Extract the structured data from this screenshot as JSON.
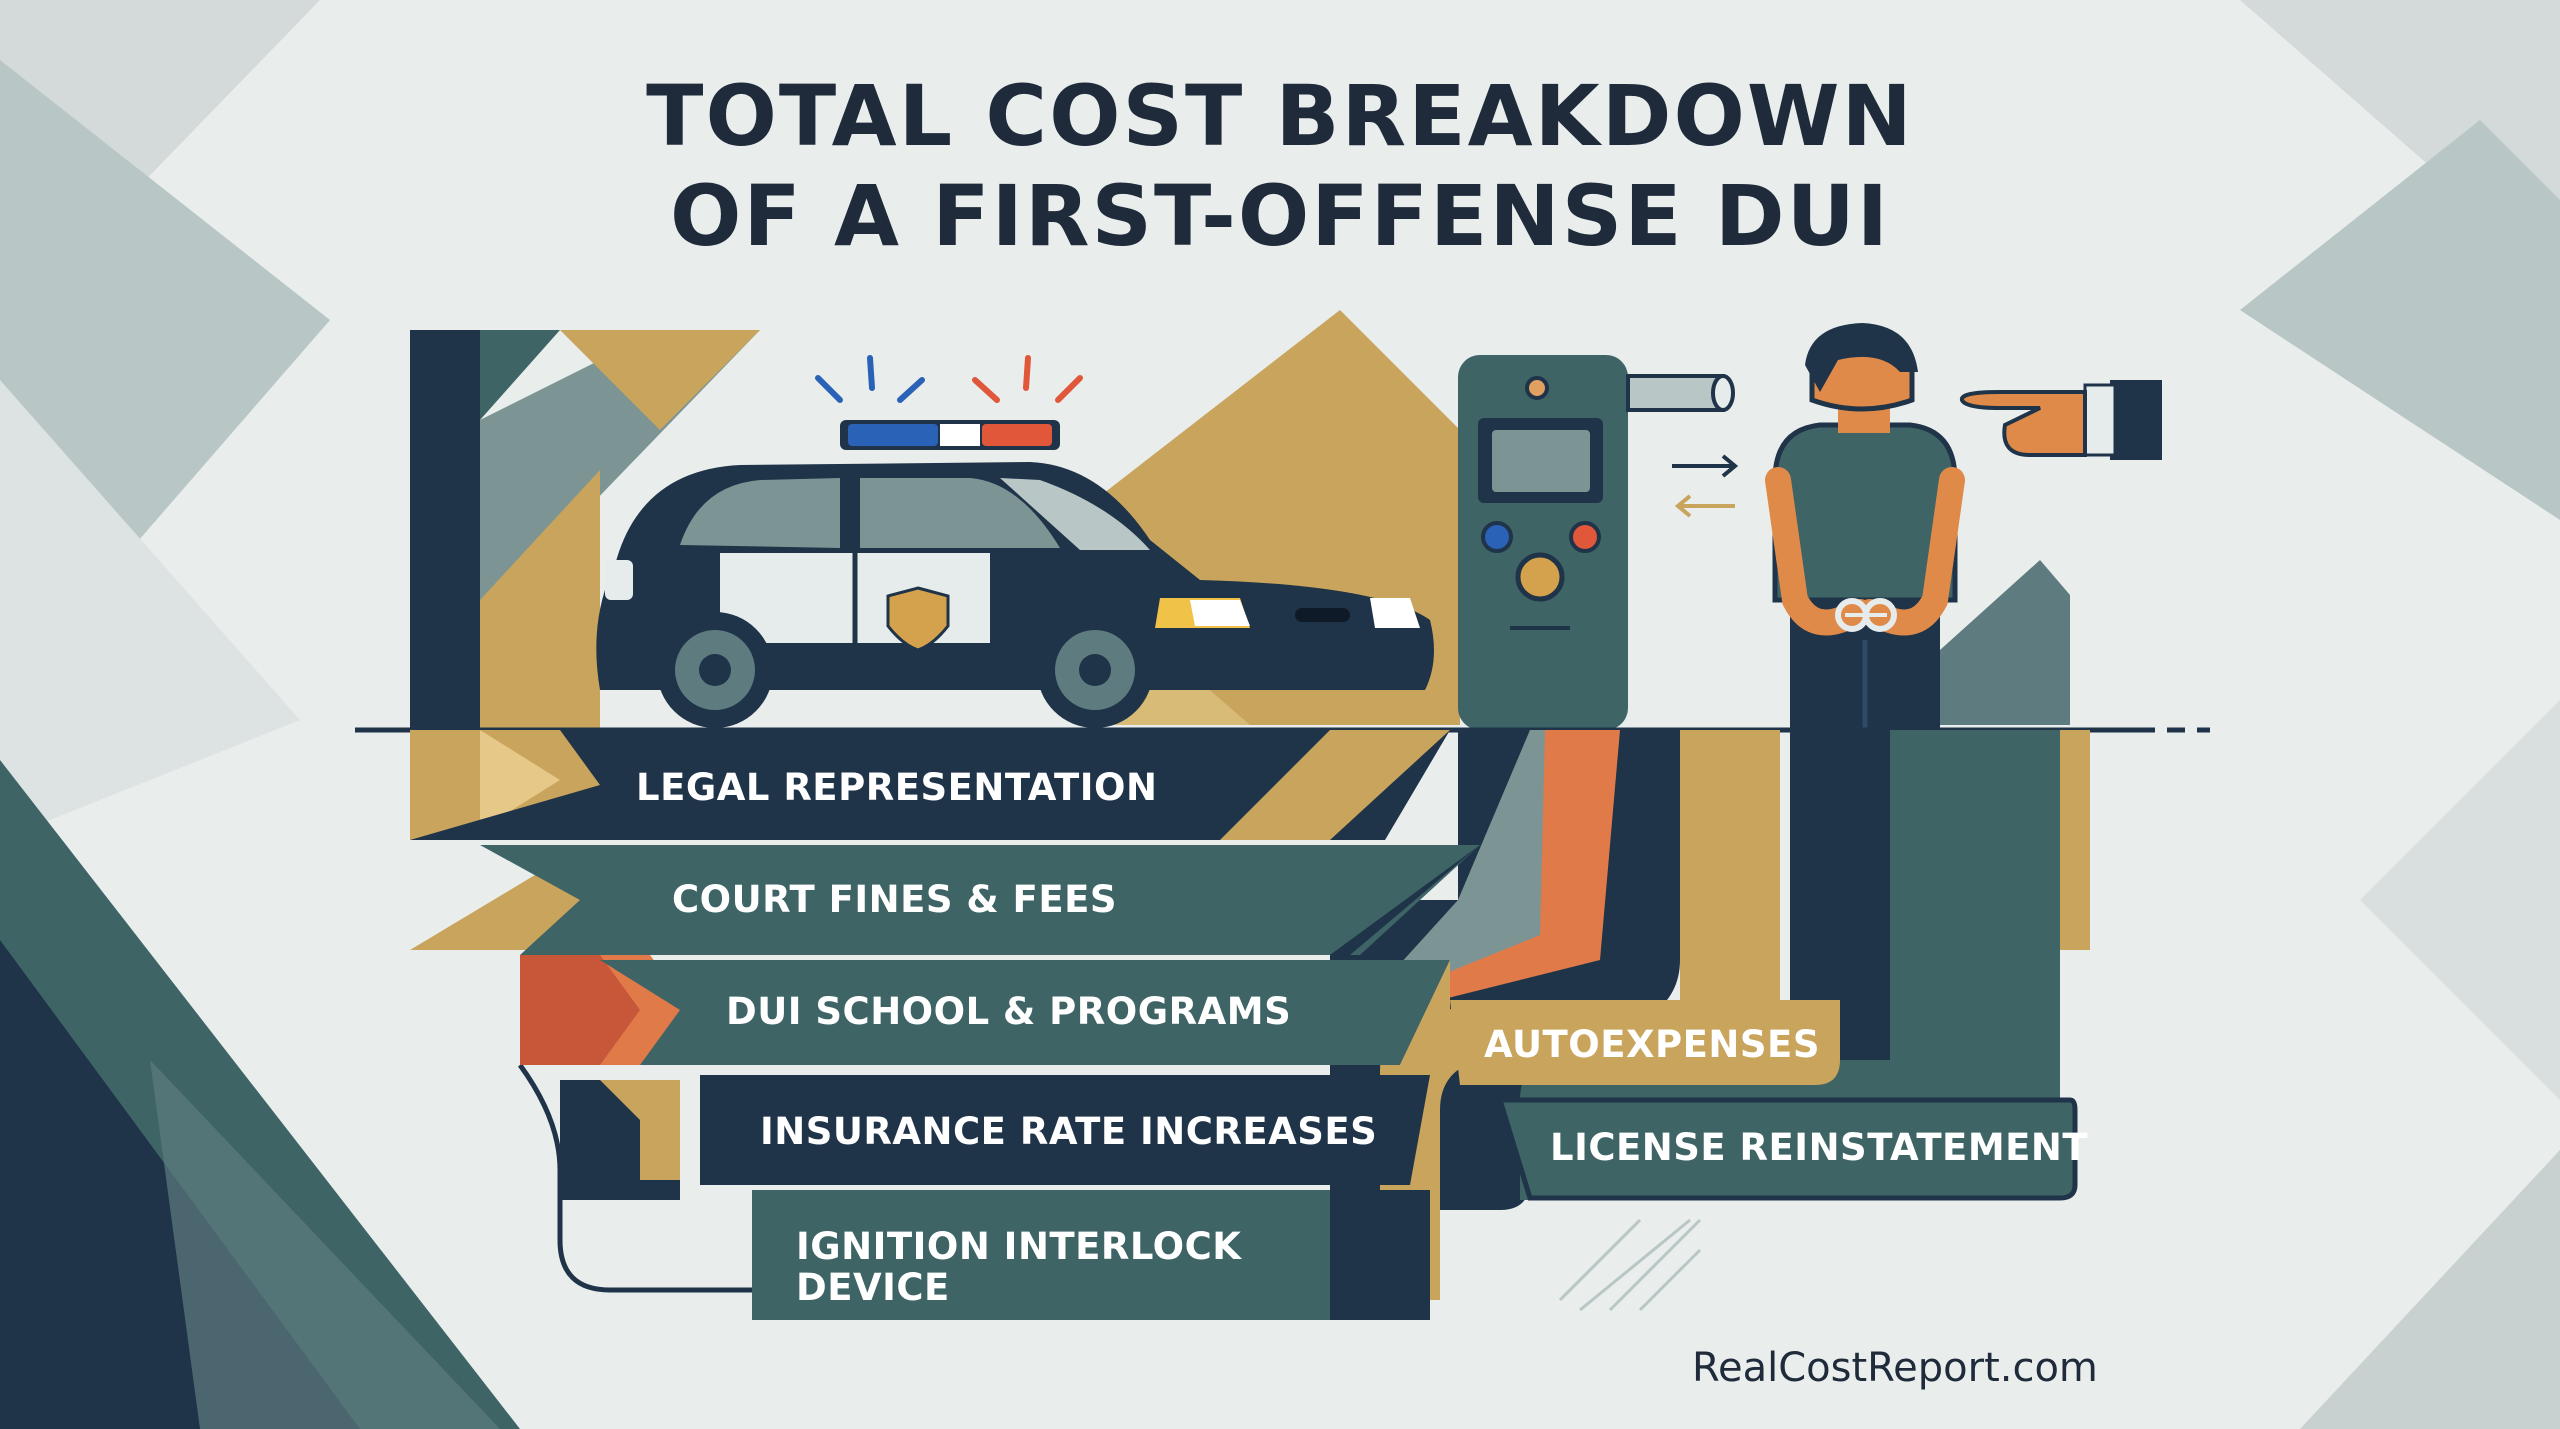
{
  "title": {
    "line1": "TOTAL COST BREAKDOWN",
    "line2": "OF A FIRST-OFFENSE DUI"
  },
  "categories": {
    "legal": "LEGAL REPRESENTATION",
    "court": "COURT FINES & FEES",
    "school": "DUI SCHOOL & PROGRAMS",
    "insurance": "INSURANCE RATE INCREASES",
    "interlock_1": "IGNITION INTERLOCK",
    "interlock_2": "DEVICE",
    "auto": "AUTOEXPENSES",
    "license": "LICENSE REINSTATEMENT"
  },
  "footer": {
    "source": "RealCostReport.com"
  },
  "colors": {
    "navy": "#1f3349",
    "teal": "#3e6466",
    "slate": "#5e7c7f",
    "gold": "#c9a45c",
    "orange": "#e07a48",
    "background": "#e9edec"
  },
  "icons": [
    "police-car-icon",
    "breathalyzer-icon",
    "handcuffed-person-icon",
    "pointing-hand-icon"
  ]
}
